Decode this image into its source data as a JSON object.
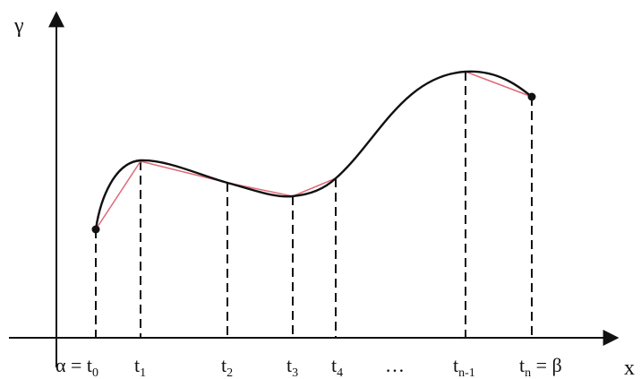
{
  "axes": {
    "y_label": "γ",
    "x_label": "x"
  },
  "ticks": [
    {
      "id": "t0",
      "main": "α = t",
      "sub": "0",
      "tail": ""
    },
    {
      "id": "t1",
      "main": "t",
      "sub": "1",
      "tail": ""
    },
    {
      "id": "t2",
      "main": "t",
      "sub": "2",
      "tail": ""
    },
    {
      "id": "t3",
      "main": "t",
      "sub": "3",
      "tail": ""
    },
    {
      "id": "t4",
      "main": "t",
      "sub": "4",
      "tail": ""
    },
    {
      "id": "dots",
      "main": "…",
      "sub": "",
      "tail": ""
    },
    {
      "id": "tn1",
      "main": "t",
      "sub": "n-1",
      "tail": ""
    },
    {
      "id": "tn",
      "main": "t",
      "sub": "n",
      "tail": " = β"
    }
  ],
  "colors": {
    "curve": "#111111",
    "chords": "#e06a78",
    "axes": "#111111",
    "guides": "#111111"
  }
}
